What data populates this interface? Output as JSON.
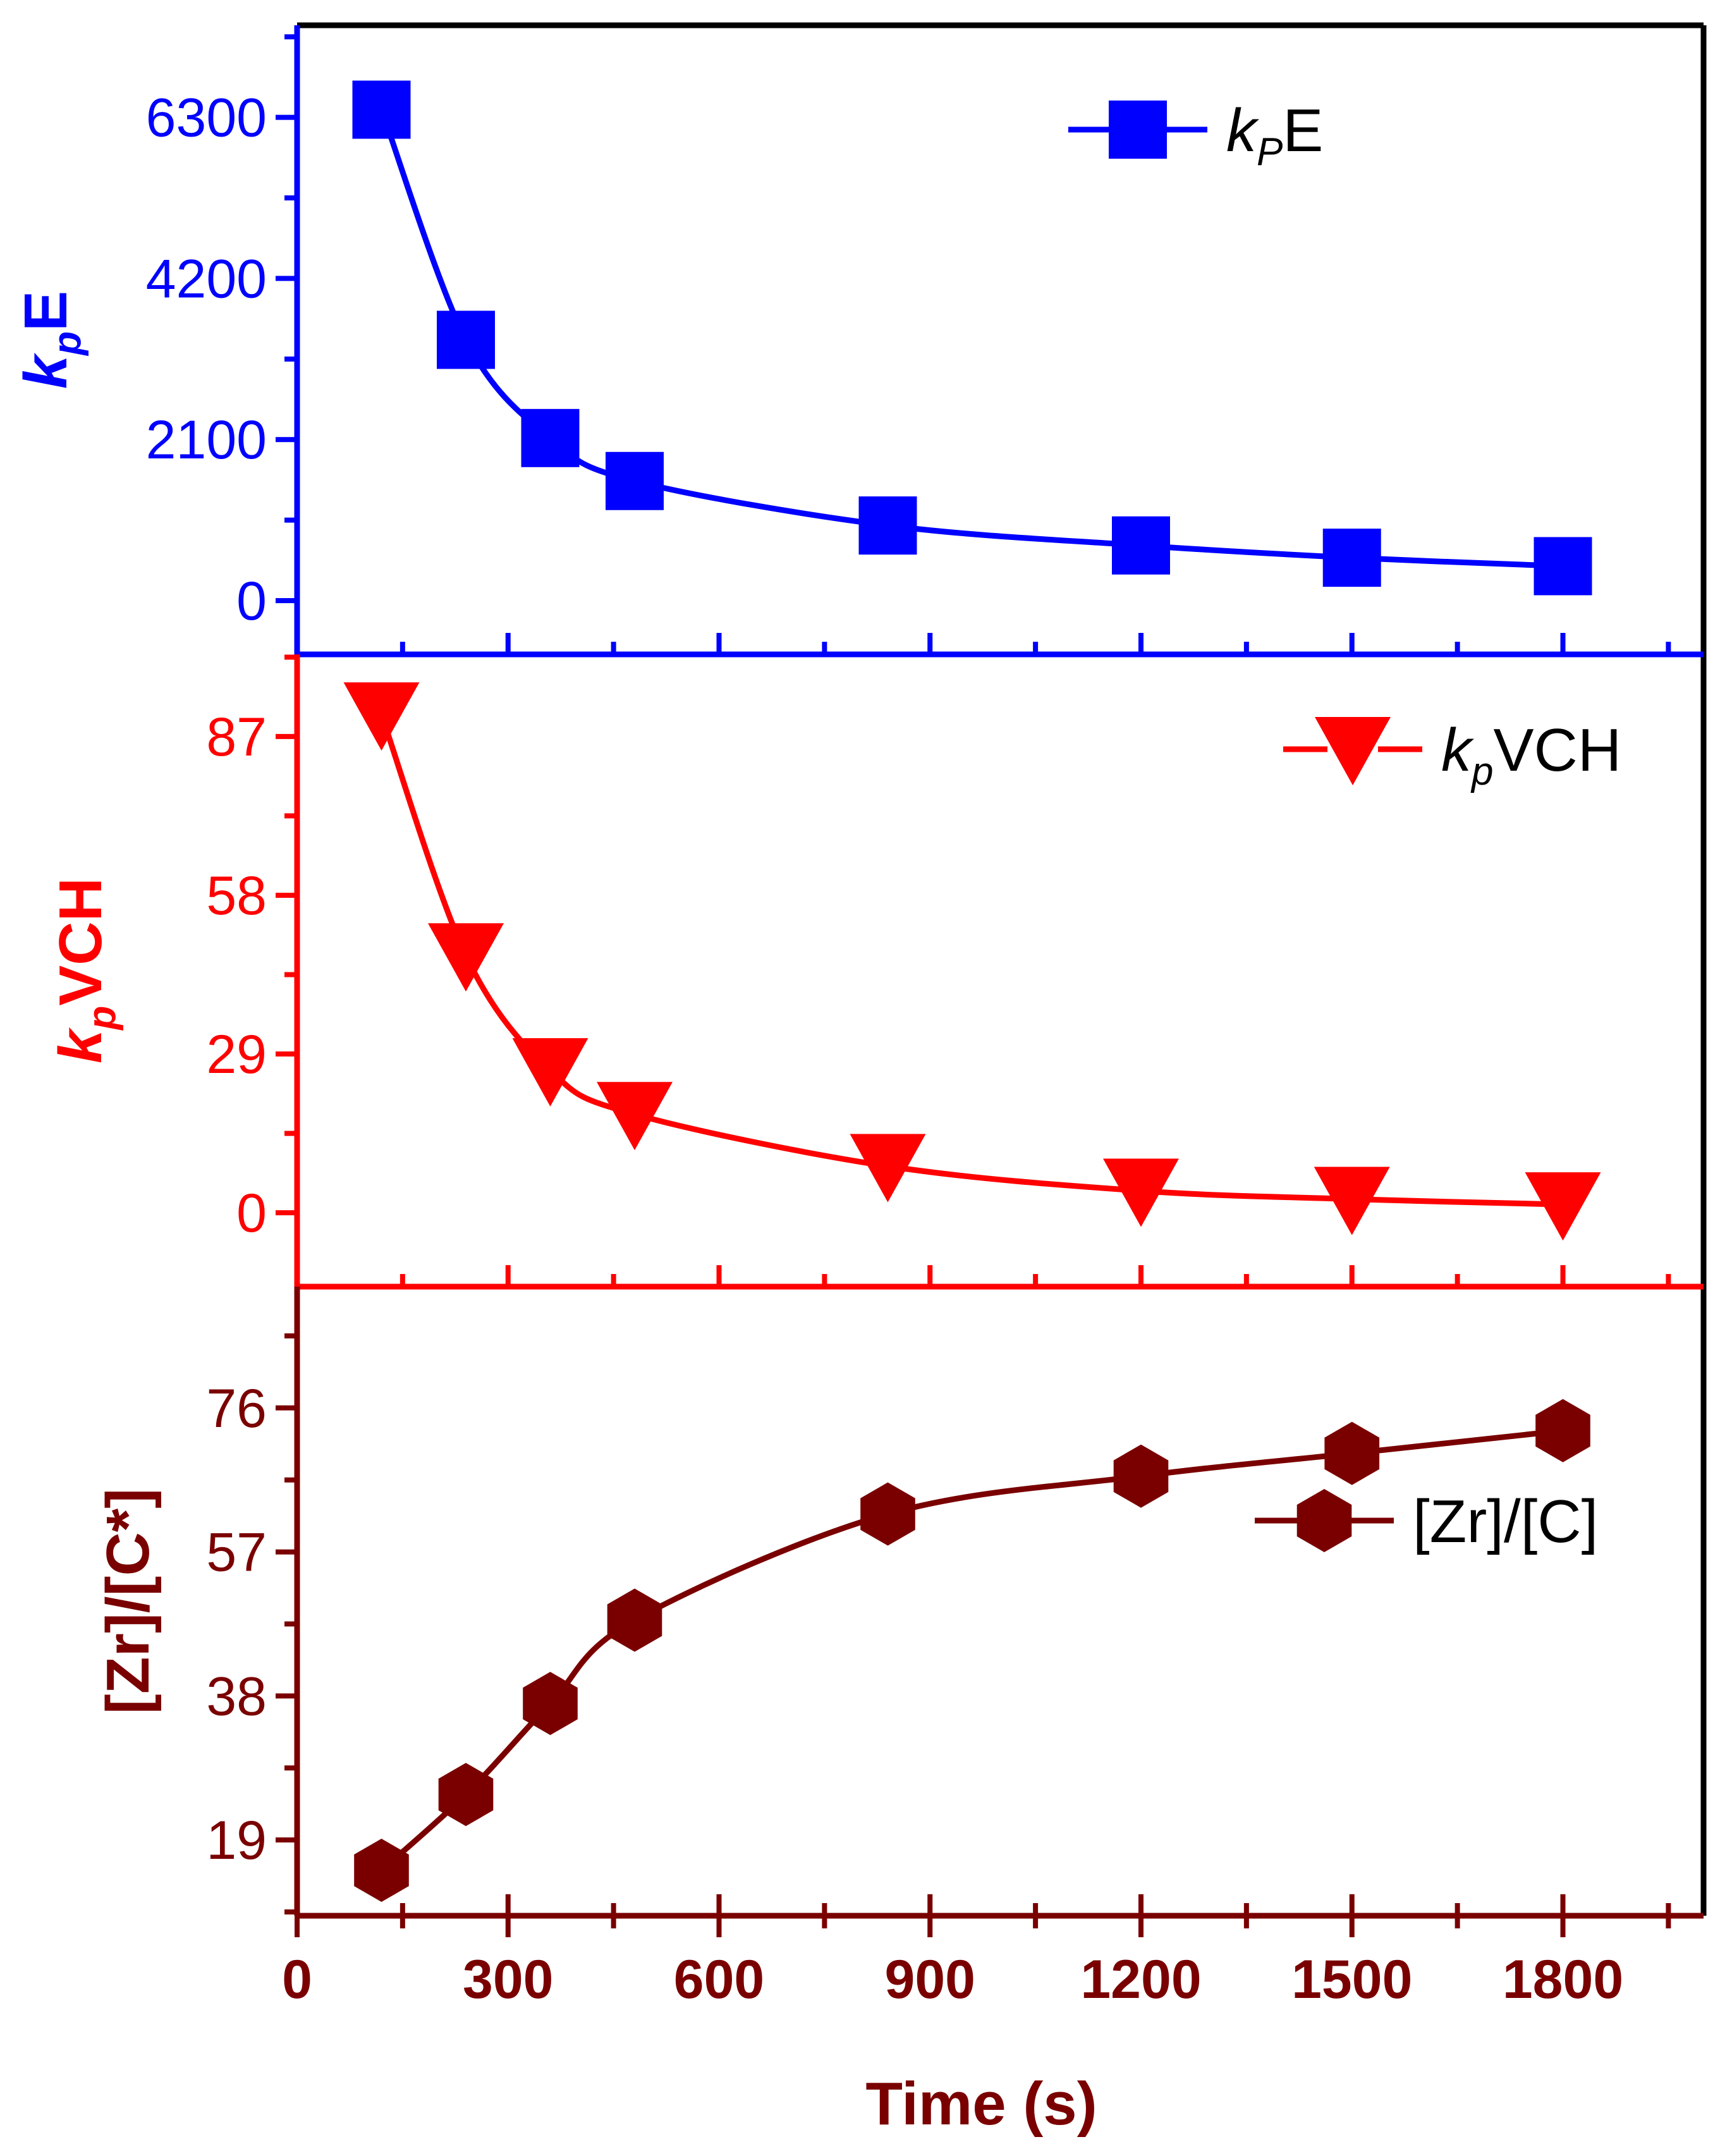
{
  "chart_data": {
    "type": "line",
    "xlabel": "Time (s)",
    "x_ticks": [
      "0",
      "300",
      "600",
      "900",
      "1200",
      "1500",
      "1800"
    ],
    "xlim": [
      0,
      2000
    ],
    "colors": {
      "top": "#0000ff",
      "middle": "#ff0000",
      "bottom": "#7a0000",
      "frame": "#000000"
    },
    "panels": [
      {
        "id": "kpE",
        "ylabel": {
          "k": "k",
          "sub": "p",
          "rest": "E"
        },
        "ylim": [
          -700,
          7500
        ],
        "y_ticks": [
          0,
          2100,
          4200,
          6300
        ],
        "y_tick_labels": [
          "0",
          "2100",
          "4200",
          "6300"
        ],
        "series": {
          "name": "kPE",
          "legend": {
            "k": "k",
            "sub": "P",
            "rest": "E"
          },
          "marker": "square",
          "x": [
            120,
            240,
            360,
            480,
            840,
            1200,
            1500,
            1800
          ],
          "values": [
            6400,
            3400,
            2120,
            1560,
            980,
            720,
            560,
            450
          ]
        },
        "legend_position": "top-right"
      },
      {
        "id": "kpVCH",
        "ylabel": {
          "k": "k",
          "sub": "p",
          "rest": "VCH"
        },
        "ylim": [
          -13.5,
          102
        ],
        "y_ticks": [
          0,
          29,
          58,
          87
        ],
        "y_tick_labels": [
          "0",
          "29",
          "58",
          "87"
        ],
        "series": {
          "name": "kpVCH",
          "legend": {
            "k": "k",
            "sub": "p",
            "rest": "VCH"
          },
          "marker": "triangle-down",
          "x": [
            120,
            240,
            360,
            480,
            840,
            1200,
            1500,
            1800
          ],
          "values": [
            91,
            47,
            26,
            18,
            8.5,
            4,
            2.5,
            1.5
          ]
        },
        "legend_position": "top-right"
      },
      {
        "id": "ZrC",
        "ylabel": {
          "k": "",
          "sub": "",
          "rest": "[Zr]/[C*]"
        },
        "ylim": [
          9,
          92
        ],
        "y_ticks": [
          19,
          38,
          57,
          76
        ],
        "y_tick_labels": [
          "19",
          "38",
          "57",
          "76"
        ],
        "series": {
          "name": "[Zr]/[C]",
          "legend": {
            "k": "",
            "sub": "",
            "rest": "[Zr]/[C]"
          },
          "marker": "hexagon",
          "x": [
            120,
            240,
            360,
            480,
            840,
            1200,
            1500,
            1800
          ],
          "values": [
            15,
            25,
            37,
            48,
            62,
            67,
            70,
            73
          ]
        },
        "legend_position": "middle-right"
      }
    ]
  }
}
